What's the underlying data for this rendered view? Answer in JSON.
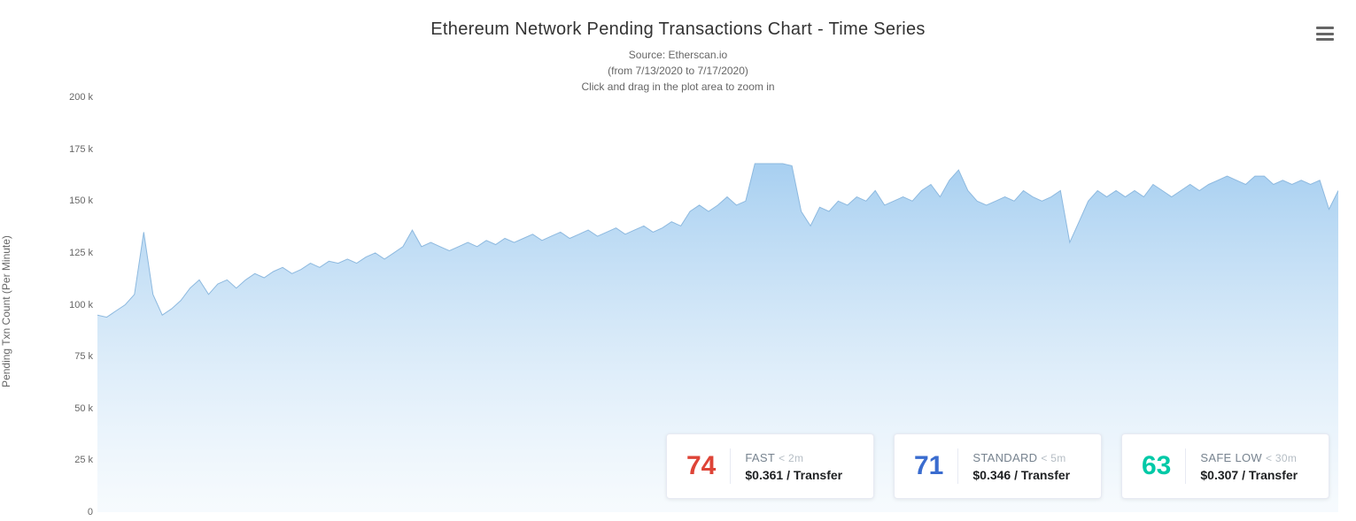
{
  "header": {
    "title": "Ethereum Network Pending Transactions Chart - Time Series",
    "source": "Source: Etherscan.io",
    "range": "(from 7/13/2020 to 7/17/2020)",
    "hint": "Click and drag in the plot area to zoom in"
  },
  "colors": {
    "title": "#333333",
    "subtitle": "#666666",
    "area_fill_top": "#a3cdf0",
    "area_fill_bottom": "#eef6fc",
    "line_stroke": "#8db9df",
    "tick": "#ccd6eb",
    "axis_text": "#666666",
    "background": "#ffffff",
    "card_border": "#e7eaf3",
    "fast": "#de4437",
    "standard": "#3a6ccf",
    "safelow": "#00c9a7"
  },
  "chart": {
    "type": "area",
    "y_title": "Pending Txn Count (Per Minute)",
    "y_min": 0,
    "y_max": 200000,
    "y_tick_step": 25000,
    "y_tick_labels": [
      "0",
      "25 k",
      "50 k",
      "75 k",
      "100 k",
      "125 k",
      "150 k",
      "175 k",
      "200 k"
    ],
    "series": [
      95000,
      94000,
      97000,
      100000,
      105000,
      135000,
      105000,
      95000,
      98000,
      102000,
      108000,
      112000,
      105000,
      110000,
      112000,
      108000,
      112000,
      115000,
      113000,
      116000,
      118000,
      115000,
      117000,
      120000,
      118000,
      121000,
      120000,
      122000,
      120000,
      123000,
      125000,
      122000,
      125000,
      128000,
      136000,
      128000,
      130000,
      128000,
      126000,
      128000,
      130000,
      128000,
      131000,
      129000,
      132000,
      130000,
      132000,
      134000,
      131000,
      133000,
      135000,
      132000,
      134000,
      136000,
      133000,
      135000,
      137000,
      134000,
      136000,
      138000,
      135000,
      137000,
      140000,
      138000,
      145000,
      148000,
      145000,
      148000,
      152000,
      148000,
      150000,
      168000,
      168000,
      168000,
      168000,
      167000,
      145000,
      138000,
      147000,
      145000,
      150000,
      148000,
      152000,
      150000,
      155000,
      148000,
      150000,
      152000,
      150000,
      155000,
      158000,
      152000,
      160000,
      165000,
      155000,
      150000,
      148000,
      150000,
      152000,
      150000,
      155000,
      152000,
      150000,
      152000,
      155000,
      130000,
      140000,
      150000,
      155000,
      152000,
      155000,
      152000,
      155000,
      152000,
      158000,
      155000,
      152000,
      155000,
      158000,
      155000,
      158000,
      160000,
      162000,
      160000,
      158000,
      162000,
      162000,
      158000,
      160000,
      158000,
      160000,
      158000,
      160000,
      146000,
      155000
    ]
  },
  "cards": [
    {
      "num": "74",
      "color_key": "fast",
      "label": "FAST",
      "sub": "< 2m",
      "price": "$0.361 / Transfer"
    },
    {
      "num": "71",
      "color_key": "standard",
      "label": "STANDARD",
      "sub": "< 5m",
      "price": "$0.346 / Transfer"
    },
    {
      "num": "63",
      "color_key": "safelow",
      "label": "SAFE LOW",
      "sub": "< 30m",
      "price": "$0.307 / Transfer"
    }
  ]
}
